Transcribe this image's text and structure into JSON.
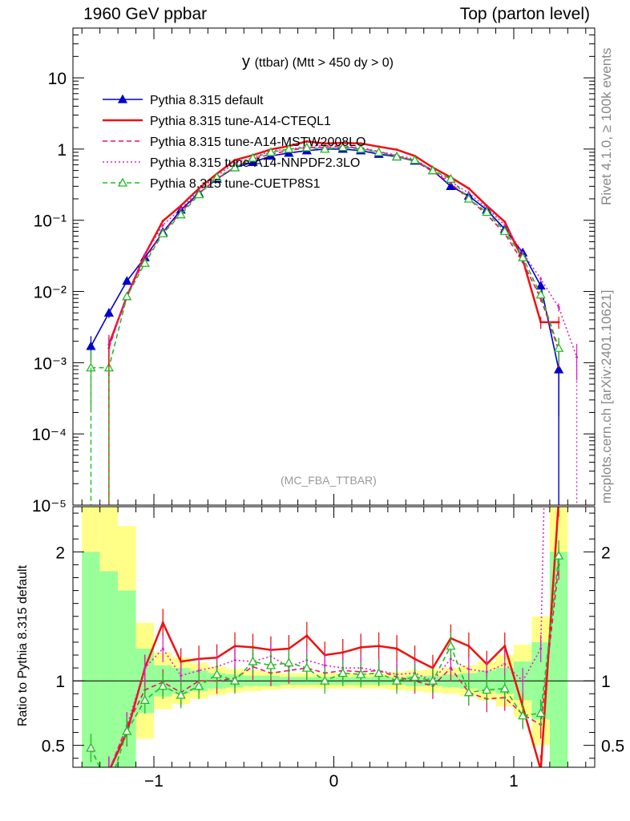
{
  "header": {
    "left": "1960 GeV ppbar",
    "right": "Top (parton level)"
  },
  "side_text": {
    "rivet": "Rivet 4.1.0, ≥ 100k events",
    "mcplots": "mcplots.cern.ch [arXiv:2401.10621]"
  },
  "plot_title": {
    "main": "y",
    "sub": "(ttbar) (Mtt > 450 dy > 0)"
  },
  "watermark": "(MC_FBA_TTBAR)",
  "ratio_ylabel": "Ratio to Pythia 8.315 default",
  "chart_data": {
    "type": "line",
    "title": "y (ttbar) (Mtt > 450 dy > 0)",
    "xlabel": "",
    "ylabel": "",
    "xlim": [
      -1.45,
      1.45
    ],
    "ylim": [
      1e-05,
      50
    ],
    "yscale": "log",
    "x_ticks": [
      -1,
      0,
      1
    ],
    "x_tick_labels": [
      "−1",
      "0",
      "1"
    ],
    "y_ticks": [
      1e-05,
      0.0001,
      0.001,
      0.01,
      0.1,
      1,
      10
    ],
    "y_tick_labels": [
      "10⁻⁵",
      "10⁻⁴",
      "10⁻³",
      "10⁻²",
      "10⁻¹",
      "1",
      "10"
    ],
    "legend_position": "top-left",
    "x": [
      -1.35,
      -1.25,
      -1.15,
      -1.05,
      -0.95,
      -0.85,
      -0.75,
      -0.65,
      -0.55,
      -0.45,
      -0.35,
      -0.25,
      -0.15,
      -0.05,
      0.05,
      0.15,
      0.25,
      0.35,
      0.45,
      0.55,
      0.65,
      0.75,
      0.85,
      0.95,
      1.05,
      1.15,
      1.25,
      1.35
    ],
    "series": [
      {
        "name": "Pythia 8.315 default",
        "color": "#0000cc",
        "style": "solid",
        "marker": "filled-triangle",
        "values": [
          0.0017,
          0.005,
          0.014,
          0.03,
          0.068,
          0.14,
          0.24,
          0.38,
          0.55,
          0.65,
          0.8,
          0.88,
          0.95,
          1.0,
          1.0,
          0.95,
          0.85,
          0.78,
          0.68,
          0.5,
          0.3,
          0.22,
          0.14,
          0.075,
          0.035,
          0.012,
          0.0008,
          null
        ]
      },
      {
        "name": "Pythia 8.315 tune-A14-CTEQL1",
        "color": "#ee1111",
        "style": "solid",
        "marker": "none",
        "values": [
          null,
          0.0018,
          0.0085,
          0.033,
          0.098,
          0.16,
          0.28,
          0.45,
          0.7,
          0.82,
          0.99,
          1.1,
          1.28,
          1.2,
          1.22,
          1.2,
          1.08,
          0.98,
          0.8,
          0.55,
          0.4,
          0.28,
          0.16,
          0.095,
          0.028,
          0.0037,
          0.0037,
          null
        ]
      },
      {
        "name": "Pythia 8.315 tune-A14-MSTW2008LO",
        "color": "#ee1166",
        "style": "dashed",
        "marker": "none",
        "values": [
          null,
          0.0016,
          0.009,
          0.028,
          0.068,
          0.128,
          0.24,
          0.38,
          0.56,
          0.72,
          0.85,
          0.95,
          1.05,
          1.06,
          1.08,
          1.02,
          0.92,
          0.8,
          0.68,
          0.48,
          0.33,
          0.2,
          0.12,
          0.065,
          0.026,
          0.008,
          0.0015,
          null
        ]
      },
      {
        "name": "Pythia 8.315 tune-A14-NNPDF2.3LO",
        "color": "#dd22cc",
        "style": "dotted",
        "marker": "none",
        "values": [
          null,
          0.0016,
          0.009,
          0.033,
          0.085,
          0.145,
          0.26,
          0.42,
          0.64,
          0.75,
          0.95,
          0.98,
          1.1,
          1.12,
          1.1,
          1.05,
          0.92,
          0.82,
          0.72,
          0.5,
          0.35,
          0.24,
          0.15,
          0.085,
          0.035,
          0.015,
          0.006,
          0.0012
        ]
      },
      {
        "name": "Pythia 8.315 tune-CUETP8S1",
        "color": "#22bb22",
        "style": "dashed",
        "marker": "open-triangle",
        "values": [
          0.00085,
          0.00085,
          0.0085,
          0.025,
          0.065,
          0.12,
          0.23,
          0.4,
          0.55,
          0.75,
          0.9,
          1.0,
          1.05,
          1.0,
          1.06,
          1.0,
          0.9,
          0.78,
          0.7,
          0.5,
          0.38,
          0.2,
          0.13,
          0.07,
          0.03,
          0.009,
          0.0016,
          null
        ]
      }
    ],
    "ratio_panel": {
      "ylabel": "Ratio to Pythia 8.315 default",
      "ylim": [
        0.33,
        2.35
      ],
      "y_ticks": [
        0.5,
        1,
        2
      ],
      "y_tick_labels": [
        "0.5",
        "1",
        "2"
      ],
      "reference_line": 1,
      "band_inner_halfwidth": [
        1.0,
        0.85,
        0.7,
        0.25,
        0.12,
        0.1,
        0.08,
        0.06,
        0.05,
        0.04,
        0.04,
        0.03,
        0.03,
        0.03,
        0.03,
        0.03,
        0.03,
        0.03,
        0.04,
        0.04,
        0.05,
        0.06,
        0.08,
        0.1,
        0.15,
        0.3,
        1.0,
        null
      ],
      "band_outer_halfwidth": [
        1.6,
        1.4,
        1.2,
        0.45,
        0.22,
        0.18,
        0.14,
        0.11,
        0.09,
        0.08,
        0.07,
        0.06,
        0.06,
        0.06,
        0.06,
        0.06,
        0.06,
        0.07,
        0.08,
        0.09,
        0.1,
        0.12,
        0.15,
        0.2,
        0.28,
        0.5,
        1.6,
        null
      ],
      "series_ratios": [
        {
          "name": "Pythia 8.315 tune-A14-CTEQL1",
          "values": [
            null,
            0.3,
            0.6,
            1.1,
            1.45,
            1.15,
            1.17,
            1.18,
            1.27,
            1.26,
            1.24,
            1.25,
            1.35,
            1.2,
            1.22,
            1.26,
            1.27,
            1.25,
            1.17,
            1.1,
            1.33,
            1.27,
            1.13,
            1.27,
            0.8,
            0.31,
            2.4,
            null
          ]
        },
        {
          "name": "Pythia 8.315 tune-A14-MSTW2008LO",
          "values": [
            null,
            0.3,
            0.65,
            0.93,
            0.99,
            0.91,
            1.0,
            1.0,
            1.02,
            1.11,
            1.06,
            1.08,
            1.1,
            1.06,
            1.08,
            1.07,
            1.08,
            1.03,
            1.0,
            0.96,
            1.1,
            0.91,
            0.86,
            0.87,
            0.74,
            0.66,
            1.9,
            null
          ]
        },
        {
          "name": "Pythia 8.315 tune-A14-NNPDF2.3LO",
          "values": [
            null,
            0.3,
            0.65,
            1.1,
            1.25,
            1.04,
            1.08,
            1.11,
            1.16,
            1.15,
            1.19,
            1.11,
            1.16,
            1.12,
            1.1,
            1.1,
            1.08,
            1.05,
            1.06,
            1.0,
            1.17,
            1.09,
            1.07,
            1.13,
            1.0,
            1.25,
            7.5,
            null
          ]
        },
        {
          "name": "Pythia 8.315 tune-CUETP8S1",
          "values": [
            0.48,
            0.17,
            0.61,
            0.85,
            0.96,
            0.89,
            0.96,
            1.05,
            1.0,
            1.15,
            1.12,
            1.14,
            1.1,
            1.0,
            1.06,
            1.05,
            1.06,
            1.0,
            1.03,
            1.0,
            1.27,
            0.91,
            0.93,
            0.94,
            0.73,
            0.75,
            1.97,
            null
          ]
        }
      ]
    }
  }
}
